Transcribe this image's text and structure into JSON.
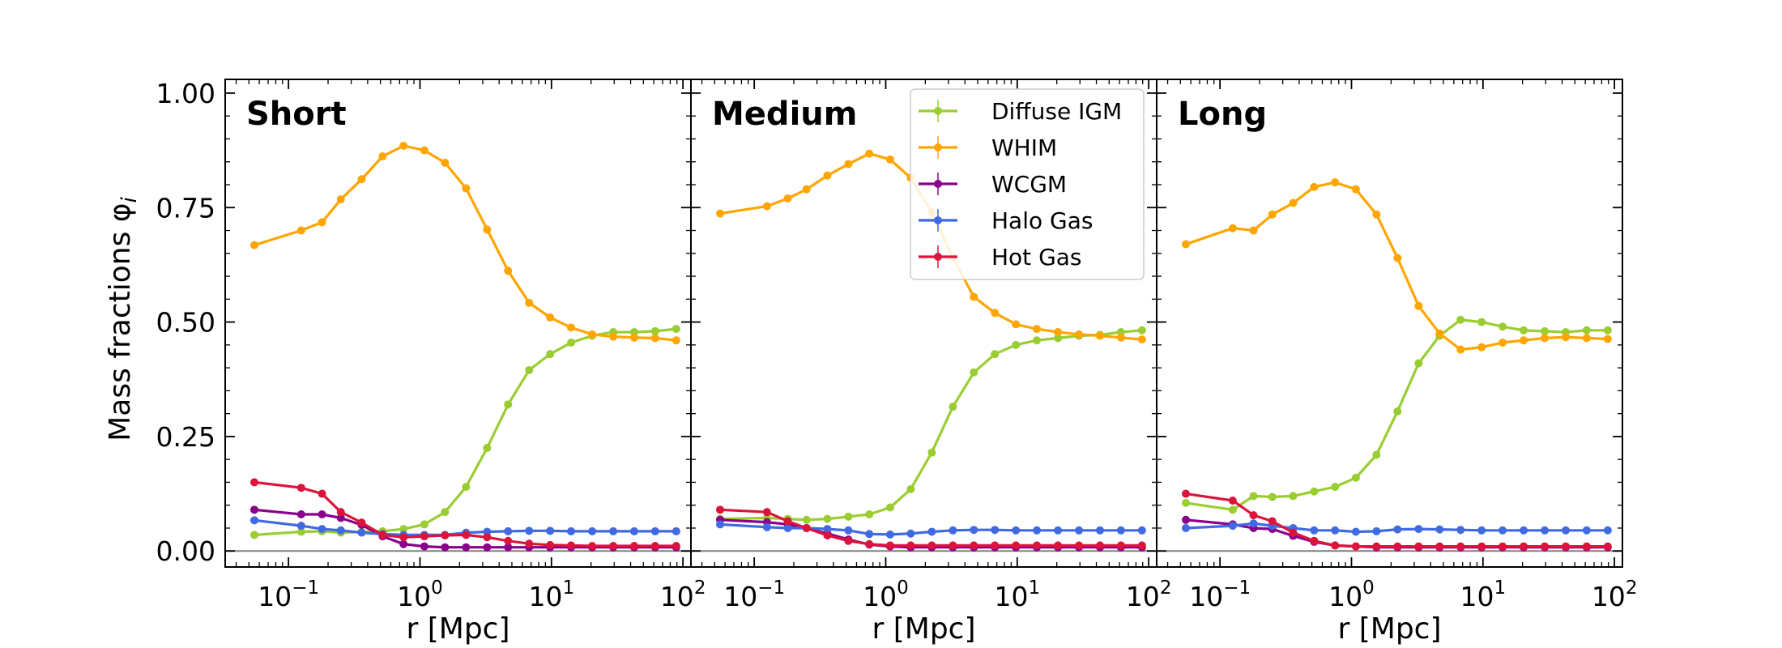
{
  "figure": {
    "ylabel": "Mass fractions φ",
    "ylabel_subscript": "i",
    "xlabel": "r [Mpc]"
  },
  "chart_data": {
    "type": "line",
    "x_scale": "log",
    "xlim": [
      0.033,
      115
    ],
    "ylim": [
      -0.035,
      1.03
    ],
    "xticks": [
      {
        "value": 0.1,
        "base": "10",
        "exp": "−1"
      },
      {
        "value": 1,
        "base": "10",
        "exp": "0"
      },
      {
        "value": 10,
        "base": "10",
        "exp": "1"
      },
      {
        "value": 100,
        "base": "10",
        "exp": "2"
      }
    ],
    "yticks": [
      {
        "value": 0.0,
        "label": "0.00"
      },
      {
        "value": 0.25,
        "label": "0.25"
      },
      {
        "value": 0.5,
        "label": "0.50"
      },
      {
        "value": 0.75,
        "label": "0.75"
      },
      {
        "value": 1.0,
        "label": "1.00"
      }
    ],
    "x": [
      0.055,
      0.125,
      0.18,
      0.25,
      0.36,
      0.52,
      0.75,
      1.08,
      1.55,
      2.24,
      3.24,
      4.68,
      6.76,
      9.77,
      14.1,
      20.4,
      29.5,
      42.6,
      61.5,
      88.9
    ],
    "legend": {
      "location": "upper right of middle panel",
      "entries": [
        {
          "name": "Diffuse IGM",
          "color": "#9acd32"
        },
        {
          "name": "WHIM",
          "color": "#ffa500"
        },
        {
          "name": "WCGM",
          "color": "#8b008b"
        },
        {
          "name": "Halo Gas",
          "color": "#4169e1"
        },
        {
          "name": "Hot Gas",
          "color": "#dc143c"
        }
      ]
    },
    "panels": [
      {
        "title": "Short",
        "series": [
          {
            "name": "Diffuse IGM",
            "color": "#9acd32",
            "values": [
              0.035,
              0.042,
              0.043,
              0.04,
              0.042,
              0.043,
              0.048,
              0.058,
              0.085,
              0.14,
              0.225,
              0.32,
              0.395,
              0.43,
              0.455,
              0.47,
              0.478,
              0.478,
              0.48,
              0.485
            ]
          },
          {
            "name": "WHIM",
            "color": "#ffa500",
            "values": [
              0.668,
              0.7,
              0.718,
              0.768,
              0.812,
              0.862,
              0.885,
              0.875,
              0.848,
              0.792,
              0.702,
              0.612,
              0.542,
              0.51,
              0.488,
              0.473,
              0.468,
              0.466,
              0.465,
              0.46
            ]
          },
          {
            "name": "WCGM",
            "color": "#8b008b",
            "values": [
              0.09,
              0.08,
              0.08,
              0.072,
              0.057,
              0.032,
              0.015,
              0.01,
              0.008,
              0.008,
              0.008,
              0.008,
              0.008,
              0.008,
              0.008,
              0.008,
              0.008,
              0.008,
              0.008,
              0.008
            ]
          },
          {
            "name": "Halo Gas",
            "color": "#4169e1",
            "values": [
              0.067,
              0.055,
              0.048,
              0.045,
              0.04,
              0.037,
              0.035,
              0.035,
              0.035,
              0.04,
              0.042,
              0.043,
              0.044,
              0.044,
              0.043,
              0.043,
              0.043,
              0.043,
              0.043,
              0.043
            ]
          },
          {
            "name": "Hot Gas",
            "color": "#dc143c",
            "values": [
              0.15,
              0.138,
              0.125,
              0.085,
              0.062,
              0.035,
              0.03,
              0.032,
              0.034,
              0.035,
              0.03,
              0.022,
              0.016,
              0.013,
              0.012,
              0.011,
              0.011,
              0.011,
              0.011,
              0.011
            ]
          }
        ]
      },
      {
        "title": "Medium",
        "series": [
          {
            "name": "Diffuse IGM",
            "color": "#9acd32",
            "values": [
              0.07,
              0.072,
              0.07,
              0.068,
              0.07,
              0.075,
              0.08,
              0.095,
              0.135,
              0.215,
              0.315,
              0.39,
              0.43,
              0.45,
              0.46,
              0.465,
              0.47,
              0.472,
              0.478,
              0.482
            ]
          },
          {
            "name": "WHIM",
            "color": "#ffa500",
            "values": [
              0.737,
              0.753,
              0.77,
              0.79,
              0.82,
              0.845,
              0.868,
              0.855,
              0.815,
              0.74,
              0.64,
              0.555,
              0.52,
              0.495,
              0.485,
              0.478,
              0.473,
              0.47,
              0.466,
              0.462
            ]
          },
          {
            "name": "WCGM",
            "color": "#8b008b",
            "values": [
              0.068,
              0.063,
              0.058,
              0.05,
              0.038,
              0.025,
              0.014,
              0.01,
              0.008,
              0.008,
              0.008,
              0.008,
              0.008,
              0.008,
              0.008,
              0.008,
              0.008,
              0.008,
              0.008,
              0.008
            ]
          },
          {
            "name": "Halo Gas",
            "color": "#4169e1",
            "values": [
              0.058,
              0.052,
              0.05,
              0.05,
              0.048,
              0.045,
              0.037,
              0.036,
              0.038,
              0.042,
              0.045,
              0.046,
              0.046,
              0.045,
              0.045,
              0.045,
              0.045,
              0.045,
              0.045,
              0.045
            ]
          },
          {
            "name": "Hot Gas",
            "color": "#dc143c",
            "values": [
              0.09,
              0.085,
              0.065,
              0.05,
              0.034,
              0.022,
              0.015,
              0.012,
              0.012,
              0.012,
              0.012,
              0.012,
              0.012,
              0.012,
              0.012,
              0.012,
              0.012,
              0.012,
              0.012,
              0.012
            ]
          }
        ]
      },
      {
        "title": "Long",
        "series": [
          {
            "name": "Diffuse IGM",
            "color": "#9acd32",
            "values": [
              0.105,
              0.09,
              0.12,
              0.118,
              0.12,
              0.13,
              0.14,
              0.16,
              0.21,
              0.305,
              0.41,
              0.47,
              0.505,
              0.5,
              0.49,
              0.482,
              0.48,
              0.478,
              0.482,
              0.482
            ]
          },
          {
            "name": "WHIM",
            "color": "#ffa500",
            "values": [
              0.67,
              0.705,
              0.7,
              0.735,
              0.76,
              0.795,
              0.805,
              0.79,
              0.735,
              0.64,
              0.535,
              0.475,
              0.44,
              0.445,
              0.455,
              0.46,
              0.465,
              0.467,
              0.465,
              0.463
            ]
          },
          {
            "name": "WCGM",
            "color": "#8b008b",
            "values": [
              0.068,
              0.058,
              0.05,
              0.048,
              0.033,
              0.02,
              0.012,
              0.01,
              0.008,
              0.008,
              0.008,
              0.008,
              0.008,
              0.008,
              0.008,
              0.008,
              0.008,
              0.008,
              0.008,
              0.008
            ]
          },
          {
            "name": "Halo Gas",
            "color": "#4169e1",
            "values": [
              0.05,
              0.055,
              0.06,
              0.055,
              0.05,
              0.045,
              0.045,
              0.042,
              0.043,
              0.047,
              0.048,
              0.047,
              0.046,
              0.045,
              0.045,
              0.045,
              0.045,
              0.045,
              0.045,
              0.045
            ]
          },
          {
            "name": "Hot Gas",
            "color": "#dc143c",
            "values": [
              0.125,
              0.11,
              0.078,
              0.065,
              0.04,
              0.022,
              0.012,
              0.01,
              0.01,
              0.01,
              0.01,
              0.01,
              0.01,
              0.01,
              0.01,
              0.01,
              0.01,
              0.01,
              0.01,
              0.01
            ]
          }
        ]
      }
    ]
  }
}
